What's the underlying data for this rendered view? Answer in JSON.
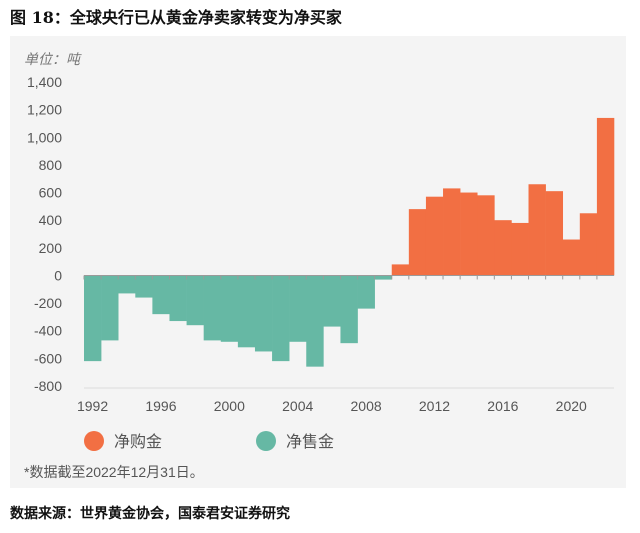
{
  "figure_title": "图 18：全球央行已从黄金净卖家转变为净买家",
  "unit_label": "单位：吨",
  "note": "*数据截至2022年12月31日。",
  "source": "数据来源：世界黄金协会，国泰君安证券研究",
  "colors": {
    "net_buy": "#f26f43",
    "net_sell": "#66b8a4",
    "background": "#f4f4f4"
  },
  "chart_data": {
    "type": "bar",
    "ylim": [
      -800,
      1400
    ],
    "yticks": [
      -800,
      -600,
      -400,
      -200,
      0,
      200,
      400,
      600,
      800,
      1000,
      1200,
      1400
    ],
    "ytick_labels": [
      "-800",
      "-600",
      "-400",
      "-200",
      "0",
      "200",
      "400",
      "600",
      "800",
      "1,000",
      "1,200",
      "1,400"
    ],
    "xtick_labels": [
      "1992",
      "1996",
      "2000",
      "2004",
      "2008",
      "2012",
      "2016",
      "2020"
    ],
    "legend": [
      {
        "name": "净购金",
        "color": "#f26f43"
      },
      {
        "name": "净售金",
        "color": "#66b8a4"
      }
    ],
    "x": [
      1992,
      1993,
      1994,
      1995,
      1996,
      1997,
      1998,
      1999,
      2000,
      2001,
      2002,
      2003,
      2004,
      2005,
      2006,
      2007,
      2008,
      2009,
      2010,
      2011,
      2012,
      2013,
      2014,
      2015,
      2016,
      2017,
      2018,
      2019,
      2020,
      2021,
      2022
    ],
    "values": [
      -620,
      -470,
      -130,
      -160,
      -280,
      -330,
      -360,
      -470,
      -480,
      -520,
      -550,
      -620,
      -480,
      -660,
      -370,
      -490,
      -240,
      -30,
      80,
      480,
      570,
      630,
      600,
      580,
      400,
      380,
      660,
      610,
      260,
      450,
      1140
    ]
  }
}
